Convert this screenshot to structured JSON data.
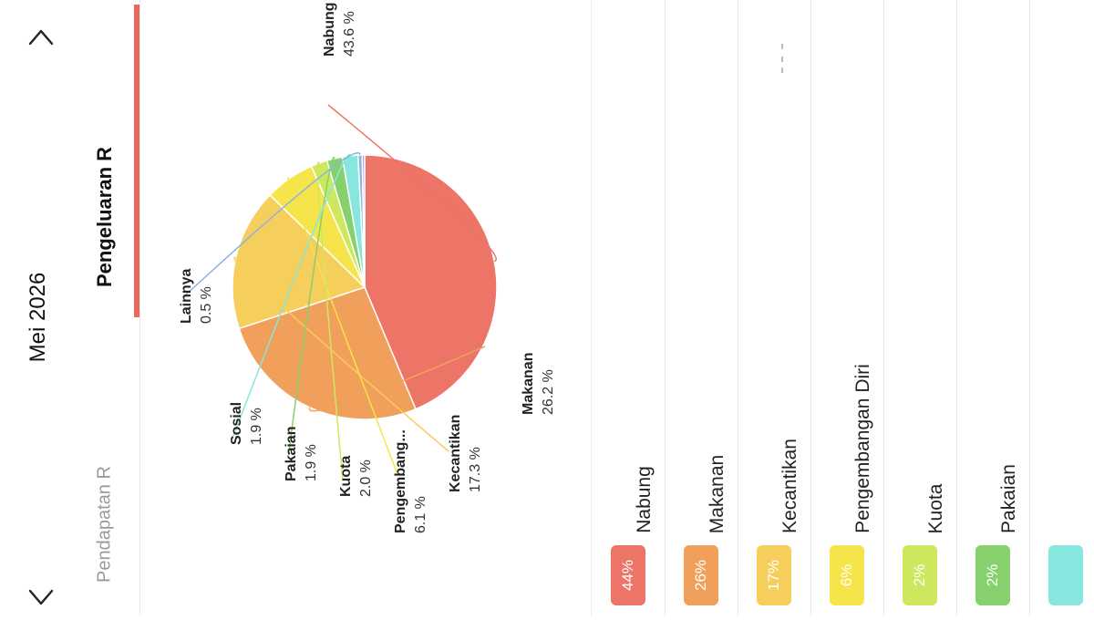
{
  "header": {
    "month": "Mei 2026"
  },
  "tabs": {
    "expense": "Pengeluaran R",
    "income": "Pendapatan R"
  },
  "chart_data": {
    "type": "pie",
    "slices": [
      {
        "label": "Nabung",
        "value": 43.6,
        "display": "43.6 %",
        "color": "#ec7567"
      },
      {
        "label": "Makanan",
        "value": 26.2,
        "display": "26.2 %",
        "color": "#f0a05a"
      },
      {
        "label": "Kecantikan",
        "value": 17.3,
        "display": "17.3 %",
        "color": "#f6ce5c"
      },
      {
        "label": "Pengembang...",
        "value": 6.1,
        "display": "6.1 %",
        "color": "#f5e54a"
      },
      {
        "label": "Kuota",
        "value": 2.0,
        "display": "2.0 %",
        "color": "#cde85e"
      },
      {
        "label": "Pakaian",
        "value": 1.9,
        "display": "1.9 %",
        "color": "#86d16d"
      },
      {
        "label": "Sosial",
        "value": 1.9,
        "display": "1.9 %",
        "color": "#87e6dd"
      },
      {
        "label": "Lainnya",
        "value": 0.5,
        "display": "0.5 %",
        "color": "#8ab4e4"
      },
      {
        "label": "",
        "value": 0.3,
        "display": "",
        "color": "#b39ddb"
      }
    ]
  },
  "legend": {
    "items": [
      {
        "name": "Nabung",
        "pct": "44%",
        "color": "#ec7567"
      },
      {
        "name": "Makanan",
        "pct": "26%",
        "color": "#f0a05a"
      },
      {
        "name": "Kecantikan",
        "pct": "17%",
        "color": "#f6ce5c"
      },
      {
        "name": "Pengembangan Diri",
        "pct": "6%",
        "color": "#f5e54a"
      },
      {
        "name": "Kuota",
        "pct": "2%",
        "color": "#cde85e"
      },
      {
        "name": "Pakaian",
        "pct": "2%",
        "color": "#86d16d"
      },
      {
        "name": "",
        "pct": "",
        "color": "#87e6dd"
      }
    ]
  }
}
